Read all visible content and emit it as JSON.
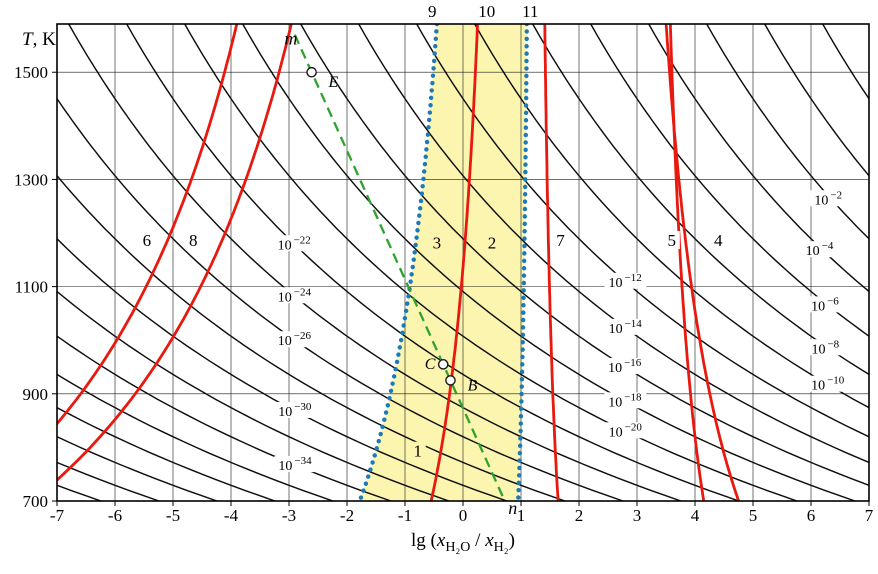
{
  "chart_data": {
    "type": "line",
    "xlabel_parts": [
      {
        "text": "lg ("
      },
      {
        "text": "x",
        "italic": true
      },
      {
        "text": "H₂O",
        "sub": true
      },
      {
        "text": " / "
      },
      {
        "text": "x",
        "italic": true
      },
      {
        "text": "H₂",
        "sub": true
      },
      {
        "text": ")"
      }
    ],
    "ylabel_parts": [
      {
        "text": "T",
        "italic": true
      },
      {
        "text": ", K"
      }
    ],
    "xlim": [
      -7,
      7
    ],
    "T_range": [
      700,
      1590
    ],
    "x_ticks": [
      -7,
      -6,
      -5,
      -4,
      -3,
      -2,
      -1,
      0,
      1,
      2,
      3,
      4,
      5,
      6,
      7
    ],
    "y_ticks": [
      700,
      900,
      1100,
      1300,
      1500
    ],
    "top_curve_labels": [
      {
        "text": "9",
        "x": -0.53
      },
      {
        "text": "10",
        "x": 0.41
      },
      {
        "text": "11",
        "x": 1.16
      }
    ],
    "oxygen_isobars": {
      "description": "family of black lines of constant oxygen pressure 10^exp; lg(xH2O/xH2) = exp/2 + A/T - B",
      "A": 13200,
      "B": 3.1,
      "exponent_start": 2,
      "exponent_end": -44,
      "exponent_step": -2,
      "labels": [
        {
          "exp": -2,
          "T": 1263
        },
        {
          "exp": -4,
          "T": 1168
        },
        {
          "exp": -6,
          "T": 1065
        },
        {
          "exp": -8,
          "T": 985
        },
        {
          "exp": -10,
          "T": 917
        },
        {
          "exp": -12,
          "T": 1109
        },
        {
          "exp": -14,
          "T": 1023
        },
        {
          "exp": -16,
          "T": 950
        },
        {
          "exp": -18,
          "T": 886
        },
        {
          "exp": -20,
          "T": 830
        },
        {
          "exp": -22,
          "T": 1179
        },
        {
          "exp": -24,
          "T": 1082
        },
        {
          "exp": -26,
          "T": 1000
        },
        {
          "exp": -30,
          "T": 868
        },
        {
          "exp": -34,
          "T": 767
        }
      ]
    },
    "red_curves": [
      {
        "id": "6",
        "a": -5581,
        "b": -0.39,
        "label": {
          "text": "6",
          "x": -5.45,
          "T": 1185
        }
      },
      {
        "id": "8",
        "a": -5581,
        "b": 0.55,
        "label": {
          "text": "8",
          "x": -4.65,
          "T": 1185
        }
      },
      {
        "id": "10",
        "a": -1000,
        "b": 0.88
      },
      {
        "id": "7",
        "a": 287,
        "b": 1.23,
        "label": {
          "text": "7",
          "x": 1.68,
          "T": 1185
        }
      },
      {
        "id": "5",
        "a": 1562,
        "b": 2.52,
        "label": {
          "text": "5",
          "x": 3.6,
          "T": 1185
        }
      },
      {
        "id": "4",
        "a": 719,
        "b": 3.123,
        "label": {
          "text": "4",
          "x": 4.4,
          "T": 1185
        }
      }
    ],
    "blue_dotted_curves": [
      {
        "id": "9",
        "a": -1662,
        "b": 0.595
      },
      {
        "id": "11",
        "a": -187,
        "b": 1.218
      }
    ],
    "shaded_band": {
      "between_curves": [
        "9",
        "11"
      ],
      "color": "#FBF5B0"
    },
    "process_line_mn": {
      "from": {
        "label": "m",
        "x": -2.9,
        "T": 1570
      },
      "to": {
        "label": "n",
        "x": 0.72,
        "T": 700
      },
      "m_label": {
        "x": -3.08,
        "T": 1552
      },
      "n_label": {
        "x": 0.78,
        "T": 676
      },
      "points_labels": [
        {
          "name": "E",
          "x": -2.61,
          "T": 1500,
          "label_x": -2.32,
          "label_T": 1472
        },
        {
          "name": "C",
          "x": -0.341,
          "T": 955,
          "label_x": -0.66,
          "label_T": 946
        },
        {
          "name": "B",
          "x": -0.216,
          "T": 925,
          "label_x": 0.08,
          "label_T": 906
        }
      ]
    },
    "region_labels": [
      {
        "text": "1",
        "x": -0.78,
        "T": 792
      },
      {
        "text": "2",
        "x": 0.5,
        "T": 1180
      },
      {
        "text": "3",
        "x": -0.45,
        "T": 1180
      }
    ],
    "colors": {
      "isobar": "#0f0f0f",
      "red": "#E8190F",
      "blue": "#1C7AB6",
      "green": "#2FA12E",
      "band": "#FBF5B0",
      "grid": "#1a1a1a"
    }
  }
}
